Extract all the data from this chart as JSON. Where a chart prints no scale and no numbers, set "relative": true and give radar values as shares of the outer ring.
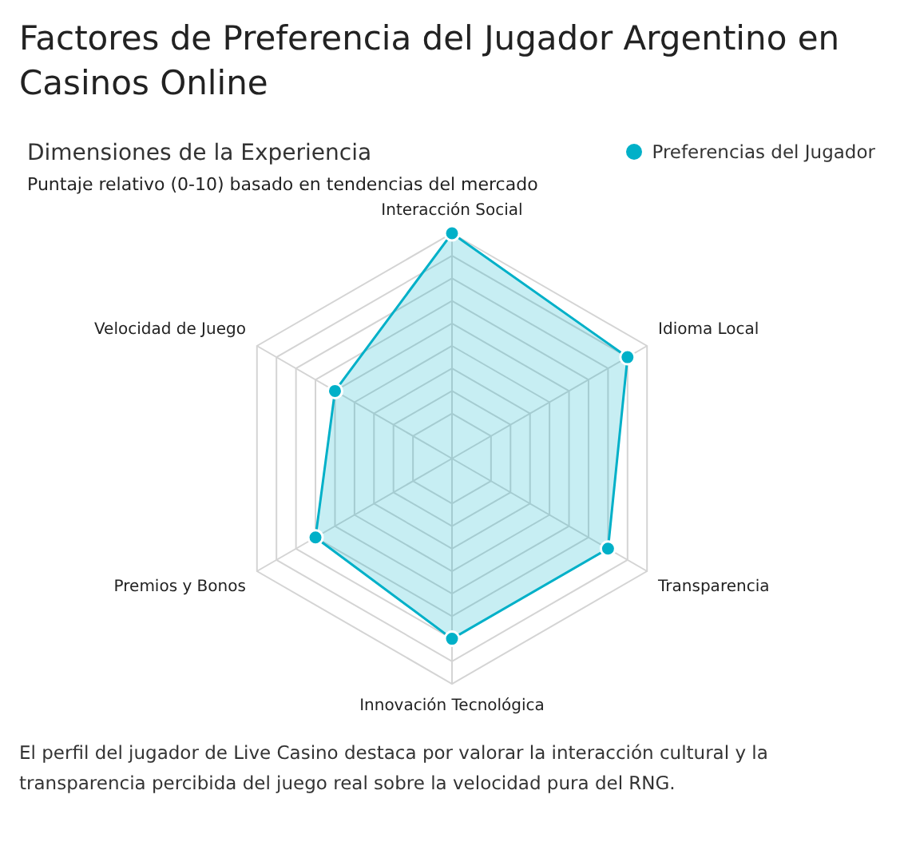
{
  "chart_data": {
    "type": "radar",
    "title": "Factores de Preferencia del Jugador Argentino en Casinos Online",
    "subtitle": "Dimensiones de la Experiencia",
    "relative": true,
    "categories": [
      "Interacción Social",
      "Idioma Local",
      "Transparencia",
      "Innovación Tecnológica",
      "Premios y Bonos",
      "Velocidad de Juego"
    ],
    "series": [
      {
        "name": "Preferencias del Jugador",
        "color": "#00b0c8",
        "values": [
          1,
          0.9,
          0.8,
          0.8,
          0.7,
          0.6
        ]
      }
    ],
    "legend": "top right",
    "grid": true,
    "marker": "circle",
    "annotations": [
      "Puntaje relativo (0-10) basado en tendencias del mercado",
      "El perfil del jugador de Live Casino destaca por valorar la interacción cultural y la transparencia percibida del juego real sobre la velocidad pura del RNG."
    ]
  }
}
